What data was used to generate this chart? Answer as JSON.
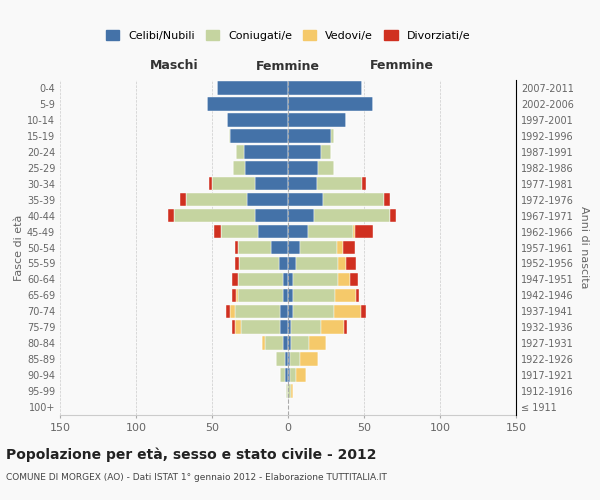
{
  "age_groups": [
    "100+",
    "95-99",
    "90-94",
    "85-89",
    "80-84",
    "75-79",
    "70-74",
    "65-69",
    "60-64",
    "55-59",
    "50-54",
    "45-49",
    "40-44",
    "35-39",
    "30-34",
    "25-29",
    "20-24",
    "15-19",
    "10-14",
    "5-9",
    "0-4"
  ],
  "birth_years": [
    "≤ 1911",
    "1912-1916",
    "1917-1921",
    "1922-1926",
    "1927-1931",
    "1932-1936",
    "1937-1941",
    "1942-1946",
    "1947-1951",
    "1952-1956",
    "1957-1961",
    "1962-1966",
    "1967-1971",
    "1972-1976",
    "1977-1981",
    "1982-1986",
    "1987-1991",
    "1992-1996",
    "1997-2001",
    "2002-2006",
    "2007-2011"
  ],
  "male": {
    "celibi": [
      0,
      0,
      2,
      2,
      3,
      5,
      5,
      3,
      3,
      6,
      11,
      20,
      22,
      27,
      22,
      28,
      29,
      38,
      40,
      53,
      47
    ],
    "coniugati": [
      0,
      1,
      3,
      6,
      12,
      26,
      30,
      30,
      30,
      26,
      22,
      24,
      53,
      40,
      28,
      8,
      5,
      1,
      0,
      0,
      0
    ],
    "vedovi": [
      0,
      0,
      0,
      0,
      2,
      4,
      3,
      1,
      0,
      0,
      0,
      0,
      0,
      0,
      0,
      0,
      0,
      0,
      0,
      0,
      0
    ],
    "divorziati": [
      0,
      0,
      0,
      0,
      0,
      2,
      3,
      3,
      4,
      3,
      2,
      5,
      4,
      4,
      2,
      0,
      0,
      0,
      0,
      0,
      0
    ]
  },
  "female": {
    "nubili": [
      0,
      0,
      1,
      1,
      2,
      2,
      3,
      3,
      3,
      5,
      8,
      13,
      17,
      23,
      19,
      20,
      22,
      28,
      38,
      56,
      49
    ],
    "coniugate": [
      0,
      2,
      4,
      7,
      12,
      20,
      27,
      28,
      30,
      28,
      24,
      30,
      50,
      40,
      30,
      10,
      6,
      2,
      0,
      0,
      0
    ],
    "vedove": [
      0,
      1,
      7,
      12,
      11,
      15,
      18,
      14,
      8,
      5,
      4,
      1,
      0,
      0,
      0,
      0,
      0,
      0,
      0,
      0,
      0
    ],
    "divorziate": [
      0,
      0,
      0,
      0,
      0,
      2,
      3,
      2,
      5,
      7,
      8,
      12,
      4,
      4,
      2,
      0,
      0,
      0,
      0,
      0,
      0
    ]
  },
  "colors": {
    "celibi": "#4472a8",
    "coniugati": "#c5d4a0",
    "vedovi": "#f5c96a",
    "divorziati": "#d03020"
  },
  "xlim": 150,
  "title": "Popolazione per età, sesso e stato civile - 2012",
  "subtitle": "COMUNE DI MORGEX (AO) - Dati ISTAT 1° gennaio 2012 - Elaborazione TUTTITALIA.IT",
  "xlabel_left": "Maschi",
  "xlabel_right": "Femmine",
  "ylabel_left": "Fasce di età",
  "ylabel_right": "Anni di nascita",
  "background_color": "#f9f9f9",
  "grid_color": "#cccccc"
}
